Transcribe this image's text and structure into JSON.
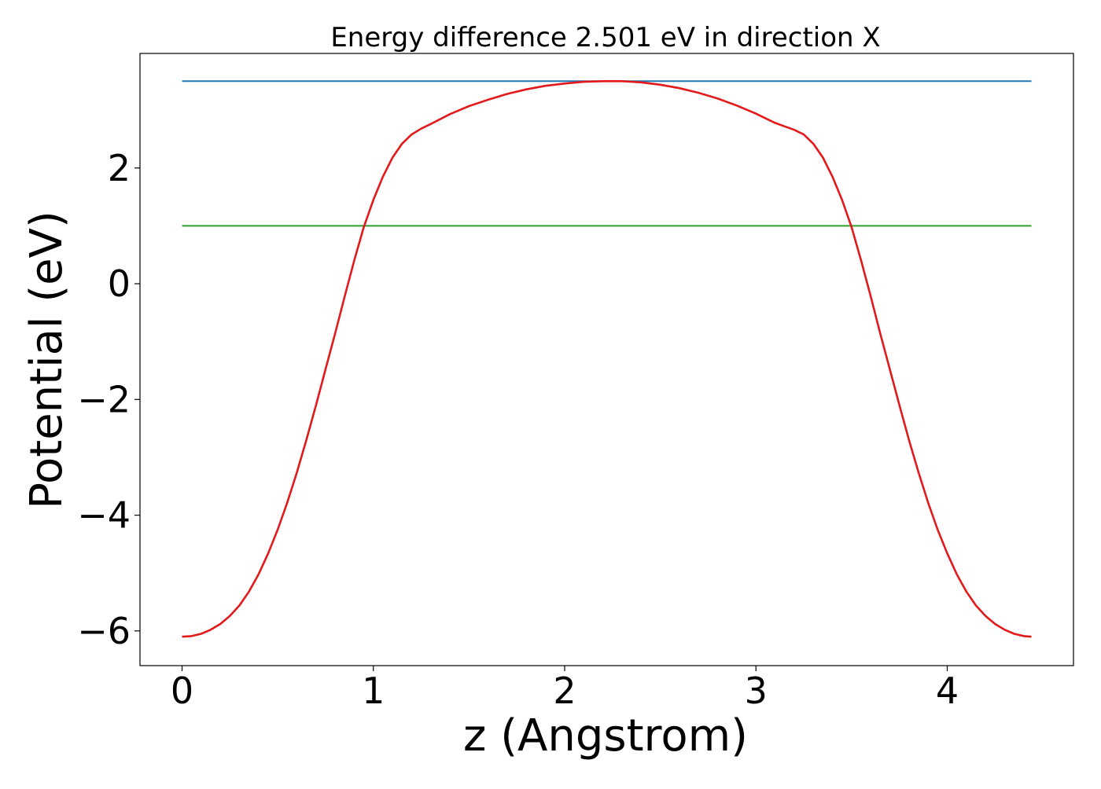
{
  "chart_data": {
    "type": "line",
    "title": "Energy difference 2.501 eV in direction X",
    "xlabel": "z (Angstrom)",
    "ylabel": "Potential (eV)",
    "xlim": [
      -0.22,
      4.66
    ],
    "ylim": [
      -6.6,
      3.98
    ],
    "x_ticks": [
      0,
      1,
      2,
      3,
      4
    ],
    "x_tick_labels": [
      "0",
      "1",
      "2",
      "3",
      "4"
    ],
    "y_ticks": [
      -6,
      -4,
      -2,
      0,
      2
    ],
    "y_tick_labels": [
      "−6",
      "−4",
      "−2",
      "0",
      "2"
    ],
    "grid": false,
    "legend": false,
    "series": [
      {
        "color": "#1f77b4",
        "x": [
          0,
          4.44
        ],
        "y": [
          3.5,
          3.5
        ]
      },
      {
        "color": "#2ca02c",
        "x": [
          0,
          4.44
        ],
        "y": [
          1.0,
          1.0
        ]
      },
      {
        "color": "#e31a1c",
        "x": [
          0,
          0.05,
          0.1,
          0.15,
          0.2,
          0.25,
          0.3,
          0.35,
          0.4,
          0.45,
          0.5,
          0.55,
          0.6,
          0.65,
          0.7,
          0.75,
          0.8,
          0.85,
          0.9,
          0.95,
          1.0,
          1.05,
          1.1,
          1.15,
          1.2,
          1.25,
          1.3,
          1.4,
          1.5,
          1.6,
          1.7,
          1.8,
          1.9,
          2.0,
          2.1,
          2.2,
          2.25,
          2.3,
          2.4,
          2.5,
          2.6,
          2.7,
          2.8,
          2.9,
          3.0,
          3.1,
          3.15,
          3.2,
          3.25,
          3.3,
          3.35,
          3.4,
          3.45,
          3.5,
          3.55,
          3.6,
          3.65,
          3.7,
          3.75,
          3.8,
          3.85,
          3.9,
          3.95,
          4.0,
          4.05,
          4.1,
          4.15,
          4.2,
          4.25,
          4.3,
          4.35,
          4.4,
          4.44
        ],
        "y": [
          -6.1,
          -6.09,
          -6.05,
          -5.98,
          -5.88,
          -5.74,
          -5.56,
          -5.32,
          -5.02,
          -4.66,
          -4.25,
          -3.78,
          -3.26,
          -2.7,
          -2.1,
          -1.48,
          -0.86,
          -0.22,
          0.4,
          0.98,
          1.45,
          1.85,
          2.18,
          2.42,
          2.58,
          2.68,
          2.76,
          2.93,
          3.07,
          3.18,
          3.28,
          3.36,
          3.42,
          3.46,
          3.49,
          3.5,
          3.5,
          3.5,
          3.48,
          3.44,
          3.38,
          3.3,
          3.2,
          3.08,
          2.94,
          2.78,
          2.72,
          2.66,
          2.58,
          2.42,
          2.18,
          1.85,
          1.45,
          0.98,
          0.4,
          -0.22,
          -0.86,
          -1.48,
          -2.1,
          -2.7,
          -3.26,
          -3.78,
          -4.25,
          -4.66,
          -5.02,
          -5.32,
          -5.56,
          -5.74,
          -5.88,
          -5.98,
          -6.05,
          -6.09,
          -6.1
        ]
      }
    ]
  }
}
